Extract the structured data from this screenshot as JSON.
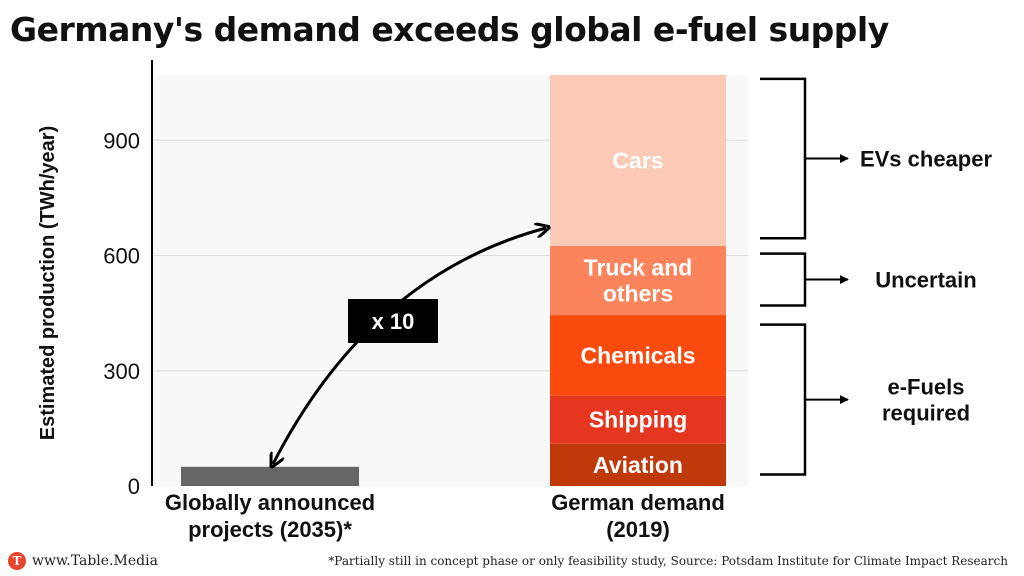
{
  "title": "Germany's demand exceeds global e-fuel supply",
  "footer": {
    "brand_logo": "T",
    "brand": "www.Table.Media",
    "note": "*Partially still in concept phase or only feasibility study, Source: Potsdam Institute for Climate Impact Research"
  },
  "colors": {
    "global_bar": "#666666",
    "aviation": "#c0390b",
    "shipping": "#e53620",
    "chemicals": "#fb4a0e",
    "truck": "#fb845c",
    "cars": "#fccbb8",
    "brand": "#e8452c"
  },
  "chart_data": {
    "type": "bar",
    "stacked": true,
    "ylabel": "Estimated production (TWh/year)",
    "ylim": [
      0,
      1070
    ],
    "yticks": [
      0,
      300,
      600,
      900
    ],
    "grid": true,
    "categories": [
      "Globally announced projects (2035)*",
      "German demand (2019)"
    ],
    "category_lines": [
      [
        "Globally announced",
        "projects (2035)*"
      ],
      [
        "German demand",
        "(2019)"
      ]
    ],
    "series": [
      {
        "name": "Globally announced projects (2035)*",
        "label_lines": [],
        "values": [
          50,
          0
        ],
        "color": "#666666"
      },
      {
        "name": "Aviation",
        "label_lines": [
          "Aviation"
        ],
        "values": [
          0,
          110
        ],
        "color": "#c0390b"
      },
      {
        "name": "Shipping",
        "label_lines": [
          "Shipping"
        ],
        "values": [
          0,
          125
        ],
        "color": "#e53620"
      },
      {
        "name": "Chemicals",
        "label_lines": [
          "Chemicals"
        ],
        "values": [
          0,
          210
        ],
        "color": "#fb4a0e"
      },
      {
        "name": "Truck and others",
        "label_lines": [
          "Truck and",
          "others"
        ],
        "values": [
          0,
          180
        ],
        "color": "#fb845c"
      },
      {
        "name": "Cars",
        "label_lines": [
          "Cars"
        ],
        "values": [
          0,
          445
        ],
        "color": "#fccbb8"
      }
    ],
    "annotations": {
      "arrow_label": "x 10",
      "brackets": [
        {
          "label_lines": [
            "EVs cheaper"
          ],
          "from": 645,
          "to": 1060
        },
        {
          "label_lines": [
            "Uncertain"
          ],
          "from": 470,
          "to": 605
        },
        {
          "label_lines": [
            "e-Fuels",
            "required"
          ],
          "from": 30,
          "to": 420
        }
      ]
    }
  }
}
